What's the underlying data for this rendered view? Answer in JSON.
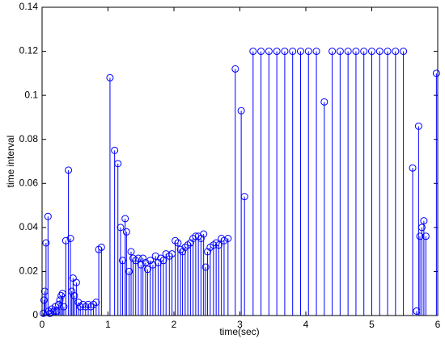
{
  "chart_data": {
    "type": "stem",
    "xlabel": "time(sec)",
    "ylabel": "time interval",
    "color": "#0000ff",
    "xlim": [
      0,
      6
    ],
    "xticks": [
      0,
      1,
      2,
      3,
      4,
      5,
      6
    ],
    "ylim": [
      0,
      0.14
    ],
    "yticks": [
      0,
      0.02,
      0.04,
      0.06,
      0.08,
      0.1,
      0.12,
      0.14
    ],
    "x": [
      0.02,
      0.03,
      0.04,
      0.06,
      0.09,
      0.1,
      0.12,
      0.15,
      0.18,
      0.2,
      0.22,
      0.25,
      0.27,
      0.29,
      0.31,
      0.33,
      0.36,
      0.4,
      0.43,
      0.45,
      0.47,
      0.49,
      0.52,
      0.55,
      0.58,
      0.62,
      0.66,
      0.7,
      0.74,
      0.78,
      0.82,
      0.86,
      0.9,
      1.03,
      1.1,
      1.15,
      1.19,
      1.22,
      1.26,
      1.28,
      1.32,
      1.35,
      1.38,
      1.42,
      1.46,
      1.5,
      1.53,
      1.57,
      1.6,
      1.64,
      1.68,
      1.72,
      1.76,
      1.8,
      1.84,
      1.88,
      1.93,
      1.97,
      2.02,
      2.06,
      2.1,
      2.13,
      2.17,
      2.21,
      2.25,
      2.29,
      2.33,
      2.37,
      2.41,
      2.45,
      2.48,
      2.51,
      2.55,
      2.6,
      2.64,
      2.68,
      2.72,
      2.76,
      2.82,
      2.93,
      3.02,
      3.07,
      3.2,
      3.32,
      3.44,
      3.56,
      3.68,
      3.8,
      3.92,
      4.04,
      4.16,
      4.28,
      4.4,
      4.52,
      4.64,
      4.76,
      4.88,
      5.0,
      5.12,
      5.24,
      5.36,
      5.48,
      5.62,
      5.68,
      5.71,
      5.73,
      5.76,
      5.79,
      5.82,
      5.98
    ],
    "values": [
      0.001,
      0.007,
      0.011,
      0.033,
      0.045,
      0.002,
      0.001,
      0.003,
      0.002,
      0.004,
      0.002,
      0.005,
      0.007,
      0.009,
      0.01,
      0.004,
      0.034,
      0.066,
      0.035,
      0.011,
      0.017,
      0.009,
      0.015,
      0.006,
      0.004,
      0.005,
      0.004,
      0.005,
      0.004,
      0.005,
      0.006,
      0.03,
      0.031,
      0.108,
      0.075,
      0.069,
      0.04,
      0.025,
      0.044,
      0.038,
      0.02,
      0.029,
      0.026,
      0.025,
      0.026,
      0.023,
      0.026,
      0.024,
      0.021,
      0.025,
      0.023,
      0.027,
      0.024,
      0.026,
      0.025,
      0.028,
      0.027,
      0.028,
      0.034,
      0.033,
      0.03,
      0.029,
      0.031,
      0.032,
      0.033,
      0.035,
      0.036,
      0.036,
      0.035,
      0.037,
      0.022,
      0.029,
      0.031,
      0.032,
      0.033,
      0.032,
      0.035,
      0.034,
      0.035,
      0.112,
      0.093,
      0.054,
      0.12,
      0.12,
      0.12,
      0.12,
      0.12,
      0.12,
      0.12,
      0.12,
      0.12,
      0.097,
      0.12,
      0.12,
      0.12,
      0.12,
      0.12,
      0.12,
      0.12,
      0.12,
      0.12,
      0.12,
      0.067,
      0.002,
      0.086,
      0.036,
      0.04,
      0.043,
      0.036,
      0.11
    ]
  }
}
